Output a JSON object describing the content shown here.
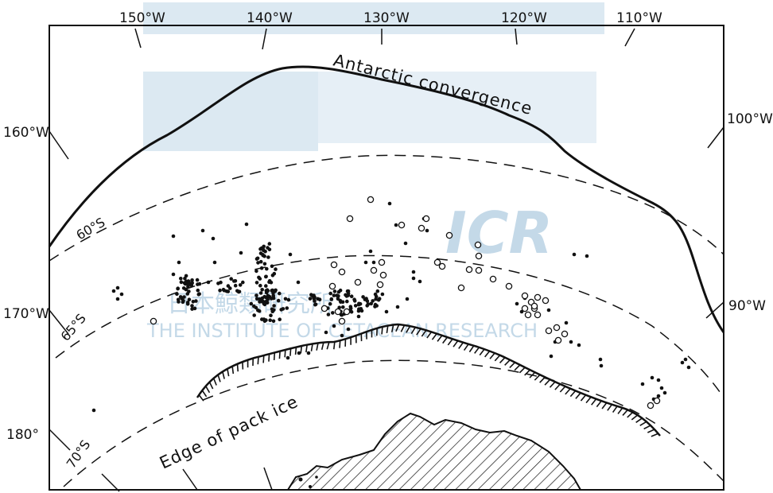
{
  "map": {
    "longitude_labels": {
      "w150": "150°W",
      "w140": "140°W",
      "w130": "130°W",
      "w120": "120°W",
      "w110": "110°W",
      "w100": "100°W",
      "w90": "90°W",
      "w160": "160°W",
      "w170": "170°W",
      "w180": "180°"
    },
    "latitude_labels": {
      "s60": "60°S",
      "s65": "65°S",
      "s70": "70°S"
    },
    "feature_labels": {
      "convergence": "Antarctic convergence",
      "pack_ice": "Edge of pack ice"
    },
    "watermark": {
      "logo": "ICR",
      "japanese": "日本鯨類研究所",
      "english": "THE INSTITUTE OF CETACEAN RESEARCH"
    },
    "colors": {
      "ink": "#111111",
      "watermark": "#c4d9e8",
      "background": "#ffffff"
    },
    "marker_legend": {
      "filled": "sighting-dot (filled circle)",
      "open": "sighting-dot (open circle)"
    }
  }
}
